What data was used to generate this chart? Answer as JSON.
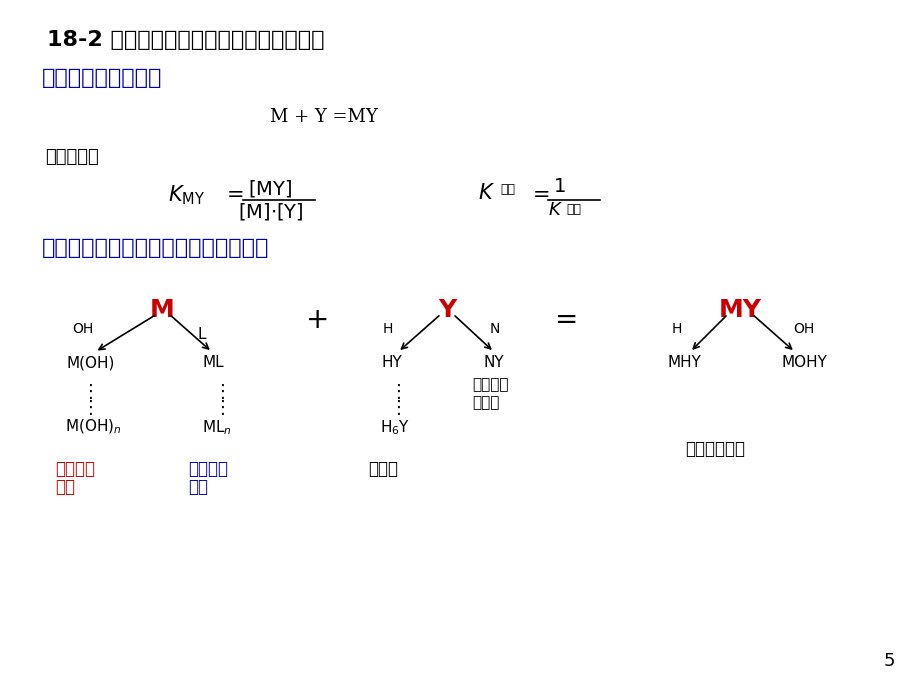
{
  "title": "18-2 配合物的副反应系数和条件稳定常数",
  "section1": "一、配合物的稳定性",
  "equation1": "M + Y =MY",
  "stable_const": "稳定常数：",
  "section2": "二、配位反应的副反应系数和条件常数",
  "bg_color": "#FFFFFF",
  "title_color": "#000000",
  "section1_color": "#0000BB",
  "section2_color": "#0000BB",
  "red_color": "#CC0000",
  "blue_color": "#0000BB",
  "black_color": "#000000",
  "page_num": "5"
}
